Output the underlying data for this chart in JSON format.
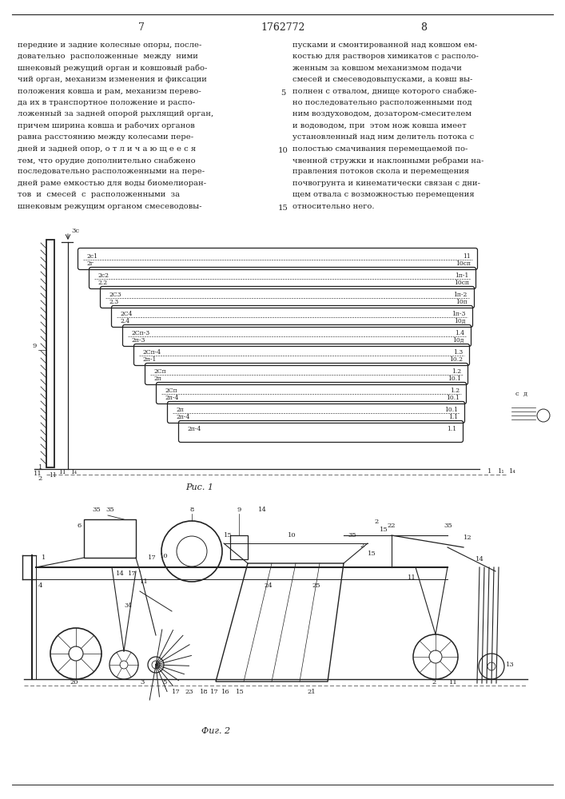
{
  "page_left": "7",
  "page_center": "1762772",
  "page_right": "8",
  "bg": "#ffffff",
  "fg": "#222222",
  "left_col": [
    "передние и задние колесные опоры, после-",
    "довательно  расположенные  между  ними",
    "шнековый режущий орган и ковшовый рабо-",
    "чий орган, механизм изменения и фиксации",
    "положения ковша и рам, механизм перево-",
    "да их в транспортное положение и распо-",
    "ложенный за задней опорой рыхлящий орган,",
    "причем ширина ковша и рабочих органов",
    "равна расстоянию между колесами пере-",
    "дней и задней опор, о т л и ч а ю щ е е с я",
    "тем, что орудие дополнительно снабжено",
    "последовательно расположенными на пере-",
    "дней раме емкостью для воды биомелиоран-",
    "тов  и  смесей  с  расположенными  за",
    "шнековым режущим органом смесеводовы-"
  ],
  "right_col": [
    "пусками и смонтированной над ковшом ем-",
    "костью для растворов химикатов с располо-",
    "женным за ковшом механизмом подачи",
    "смесей и смесеводовыпусками, а ковш вы-",
    "полнен с отвалом, днище которого снабже-",
    "но последовательно расположенными под",
    "ним воздуховодом, дозатором-смесителем",
    "и водоводом, при  этом нож ковша имеет",
    "установленный над ним делитель потока с",
    "полостью смачивания перемещаемой по-",
    "чвенной стружки и наклонными ребрами на-",
    "правления потоков скола и перемещения",
    "почвогрунта и кинематически связан с дни-",
    "щем отвала с возможностью перемещения",
    "относительно него."
  ],
  "fig1_caption": "Рис. 1",
  "fig2_caption": "Фиг. 2",
  "panels": [
    {
      "ll": "2с1",
      "lr": "11",
      "sl": "2г",
      "sr": "10сп"
    },
    {
      "ll": "2с2",
      "lr": "1п-1",
      "sl": "2.2",
      "sr": "10сп"
    },
    {
      "ll": "2С3",
      "lr": "1п-2",
      "sl": "2.3",
      "sr": "10п"
    },
    {
      "ll": "2С4",
      "lr": "1п-3",
      "sl": "2.4",
      "sr": "10д"
    },
    {
      "ll": "2Сп-3",
      "lr": "1.4",
      "sl": "2п-3",
      "sr": "10д"
    },
    {
      "ll": "2Сп-4",
      "lr": "1.3",
      "sl": "2п-1",
      "sr": "10.2"
    },
    {
      "ll": "2Сп",
      "lr": "1.2",
      "sl": "2п",
      "sr": "10.1"
    },
    {
      "ll": "2Сп",
      "lr": "1.2",
      "sl": "2п-4",
      "sr": "10.1"
    },
    {
      "ll": "2п",
      "lr": "10.1",
      "sl": "2п-4",
      "sr": "1.1"
    },
    {
      "ll": "2п-4",
      "lr": "1.1",
      "sl": "",
      "sr": ""
    }
  ]
}
